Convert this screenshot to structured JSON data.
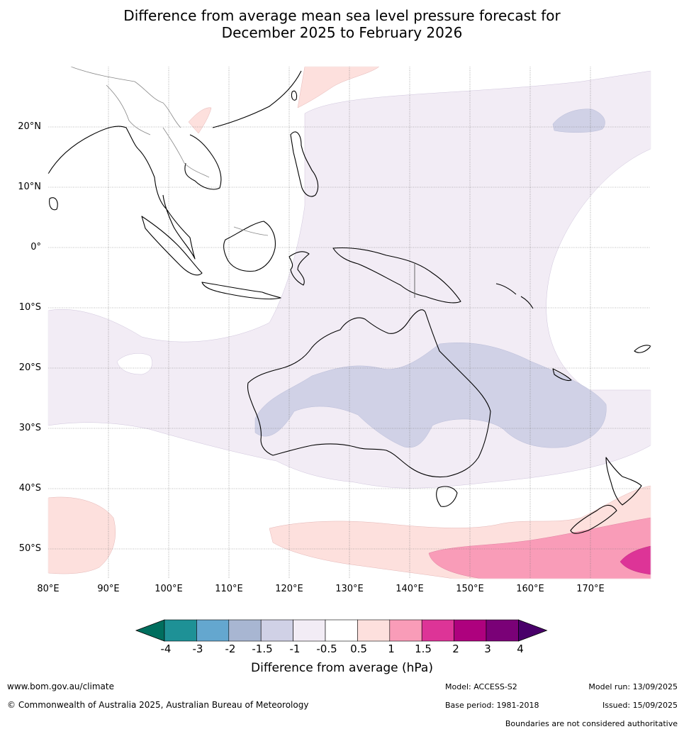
{
  "title_line1": "Difference from average mean sea level pressure forecast for",
  "title_line2": "December 2025 to February 2026",
  "map": {
    "lat_labels": [
      "20°N",
      "10°N",
      "0°",
      "10°S",
      "20°S",
      "30°S",
      "40°S",
      "50°S"
    ],
    "lon_labels": [
      "80°E",
      "90°E",
      "100°E",
      "110°E",
      "120°E",
      "130°E",
      "140°E",
      "150°E",
      "160°E",
      "170°E"
    ],
    "lon_range": [
      80,
      180
    ],
    "lat_range": [
      -55,
      30
    ]
  },
  "colorbar": {
    "label": "Difference from average (hPa)",
    "ticks": [
      "-4",
      "-3",
      "-2",
      "-1.5",
      "-1",
      "-0.5",
      "0.5",
      "1",
      "1.5",
      "2",
      "3",
      "4"
    ],
    "colors": [
      "#006e5e",
      "#1e9196",
      "#64a7cf",
      "#a8b6d2",
      "#d0d1e6",
      "#f2ecf5",
      "#ffffff",
      "#fde0dd",
      "#f99cb8",
      "#dd3497",
      "#ae017e",
      "#7a0177",
      "#49006a"
    ]
  },
  "footer": {
    "website": "www.bom.gov.au/climate",
    "copyright": "© Commonwealth of Australia 2025, Australian Bureau of Meteorology",
    "model": "Model: ACCESS-S2",
    "base_period": "Base period: 1981-2018",
    "model_run": "Model run: 13/09/2025",
    "issued": "Issued: 15/09/2025",
    "disclaimer": "Boundaries are not considered authoritative"
  }
}
